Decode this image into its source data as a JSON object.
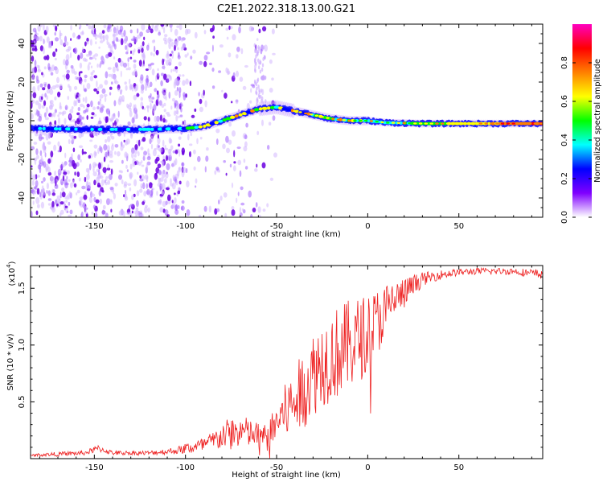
{
  "title": "C2E1.2022.318.13.00.G21",
  "chart_data": [
    {
      "type": "heatmap",
      "title": "C2E1.2022.318.13.00.G21",
      "xlabel": "Height of straight line (km)",
      "ylabel": "Frequency (Hz)",
      "xlim": [
        -185,
        96
      ],
      "ylim": [
        -50,
        50
      ],
      "xticks": [
        -150,
        -100,
        -50,
        0,
        50
      ],
      "yticks": [
        -40,
        -20,
        0,
        20,
        40
      ],
      "ridge_frequency": {
        "x": [
          -185,
          -150,
          -120,
          -100,
          -90,
          -80,
          -70,
          -60,
          -50,
          -40,
          -30,
          -20,
          -10,
          0,
          10,
          30,
          50,
          70,
          96
        ],
        "y": [
          -4,
          -4.5,
          -4.5,
          -4,
          -3,
          0,
          3,
          6,
          7,
          5,
          3,
          1,
          0,
          0,
          -1,
          -1.5,
          -1.5,
          -1.5,
          -1.5
        ]
      },
      "colorbar": {
        "label": "Normalized spectral amplitude",
        "range": [
          0,
          1
        ],
        "ticks": [
          0.0,
          0.2,
          0.4,
          0.6,
          0.8
        ],
        "colors": [
          "#ffffff",
          "#8000ff",
          "#0000ff",
          "#00ffff",
          "#00ff00",
          "#ffff00",
          "#ff8000",
          "#ff0000",
          "#ff00c0"
        ]
      }
    },
    {
      "type": "line",
      "xlabel": "Height of straight line (km)",
      "ylabel": "SNR (10 * v/v)",
      "y_scale_label": "(x10",
      "y_scale_exponent": "4",
      "xlim": [
        -185,
        96
      ],
      "ylim": [
        0,
        1.7
      ],
      "xticks": [
        -150,
        -100,
        -50,
        0,
        50
      ],
      "yticks": [
        0.5,
        1.0,
        1.5
      ],
      "ytick_labels": [
        "0.5",
        "1.0",
        "1.5"
      ],
      "line_color": "#ee2222",
      "series": [
        {
          "x": [
            -185,
            -170,
            -155,
            -148,
            -140,
            -120,
            -105,
            -100,
            -95,
            -90,
            -85,
            -80,
            -75,
            -70,
            -65,
            -60,
            -55,
            -50,
            -45,
            -40,
            -35,
            -30,
            -25,
            -20,
            -15,
            -10,
            -5,
            0,
            5,
            10,
            15,
            20,
            25,
            30,
            40,
            50,
            60,
            70,
            80,
            90,
            96
          ],
          "y": [
            0.03,
            0.04,
            0.05,
            0.09,
            0.05,
            0.05,
            0.07,
            0.09,
            0.1,
            0.12,
            0.15,
            0.2,
            0.22,
            0.25,
            0.22,
            0.2,
            0.18,
            0.32,
            0.42,
            0.5,
            0.62,
            0.75,
            0.85,
            0.9,
            0.95,
            1.0,
            1.05,
            1.1,
            1.2,
            1.3,
            1.4,
            1.45,
            1.52,
            1.58,
            1.62,
            1.64,
            1.65,
            1.65,
            1.65,
            1.63,
            1.62
          ],
          "noise": [
            0.01,
            0.02,
            0.02,
            0.03,
            0.02,
            0.02,
            0.03,
            0.05,
            0.06,
            0.07,
            0.09,
            0.12,
            0.15,
            0.15,
            0.13,
            0.12,
            0.12,
            0.18,
            0.25,
            0.3,
            0.35,
            0.38,
            0.4,
            0.4,
            0.42,
            0.4,
            0.38,
            0.35,
            0.3,
            0.25,
            0.18,
            0.14,
            0.1,
            0.06,
            0.04,
            0.03,
            0.03,
            0.03,
            0.03,
            0.04,
            0.04
          ]
        }
      ]
    }
  ]
}
